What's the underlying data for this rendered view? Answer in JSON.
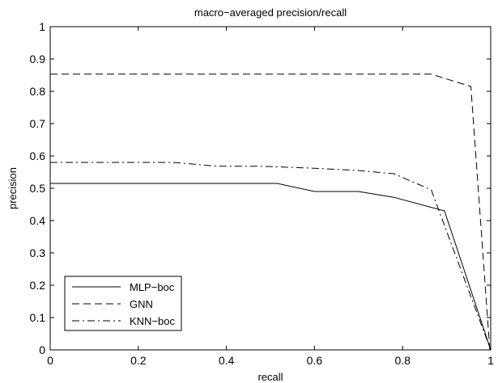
{
  "chart_data": {
    "type": "line",
    "title": "macro−averaged precision/recall",
    "xlabel": "recall",
    "ylabel": "precision",
    "xlim": [
      0,
      1
    ],
    "ylim": [
      0,
      1
    ],
    "x_ticks": [
      0,
      0.2,
      0.4,
      0.6,
      0.8,
      1
    ],
    "y_ticks": [
      0,
      0.1,
      0.2,
      0.3,
      0.4,
      0.5,
      0.6,
      0.7,
      0.8,
      0.9,
      1
    ],
    "x_tick_labels": [
      "0",
      "0.2",
      "0.4",
      "0.6",
      "0.8",
      "1"
    ],
    "y_tick_labels": [
      "0",
      "0.1",
      "0.2",
      "0.3",
      "0.4",
      "0.5",
      "0.6",
      "0.7",
      "0.8",
      "0.9",
      "1"
    ],
    "grid": false,
    "legend_position": "bottom-left",
    "series": [
      {
        "name": "MLP−boc",
        "style": "solid",
        "color": "#000000",
        "x": [
          0,
          0.515,
          0.6,
          0.7,
          0.78,
          0.895,
          1.0
        ],
        "y": [
          0.515,
          0.515,
          0.49,
          0.49,
          0.472,
          0.43,
          0.0
        ]
      },
      {
        "name": "GNN",
        "style": "dashed",
        "color": "#000000",
        "x": [
          0,
          0.865,
          0.955,
          0.998
        ],
        "y": [
          0.853,
          0.853,
          0.815,
          0.0
        ]
      },
      {
        "name": "KNN−boc",
        "style": "dashdot",
        "color": "#000000",
        "x": [
          0,
          0.28,
          0.38,
          0.48,
          0.6,
          0.7,
          0.78,
          0.865,
          1.0
        ],
        "y": [
          0.58,
          0.58,
          0.568,
          0.568,
          0.562,
          0.555,
          0.545,
          0.495,
          0.0
        ]
      }
    ]
  }
}
